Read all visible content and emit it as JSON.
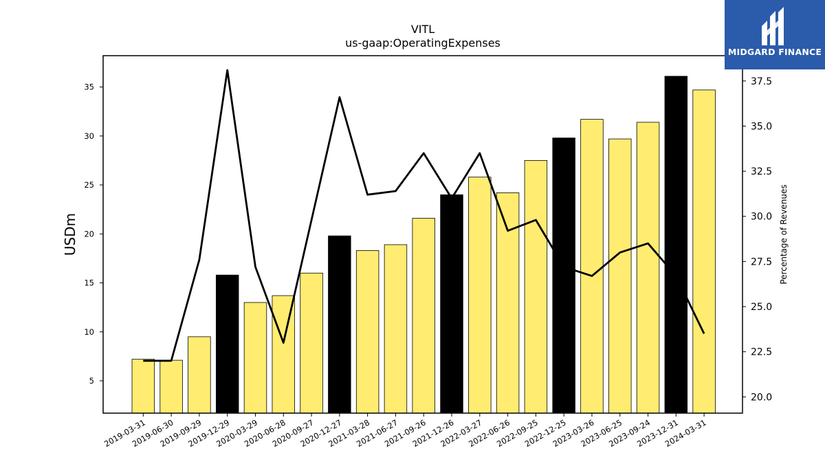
{
  "chart_data": {
    "type": "bar",
    "title": "VITL",
    "subtitle": "us-gaap:OperatingExpenses",
    "ylabel": "USDm",
    "y2label": "Percentage of Revenues",
    "categories": [
      "2019-03-31",
      "2019-06-30",
      "2019-09-29",
      "2019-12-29",
      "2020-03-29",
      "2020-06-28",
      "2020-09-27",
      "2020-12-27",
      "2021-03-28",
      "2021-06-27",
      "2021-09-26",
      "2021-12-26",
      "2022-03-27",
      "2022-06-26",
      "2022-09-25",
      "2022-12-25",
      "2023-03-26",
      "2023-06-25",
      "2023-09-24",
      "2023-12-31",
      "2024-03-31"
    ],
    "bar_values": [
      7.2,
      7.1,
      9.5,
      15.8,
      13.0,
      13.7,
      16.0,
      19.8,
      18.3,
      18.9,
      21.6,
      24.0,
      25.8,
      24.2,
      27.5,
      29.8,
      31.7,
      29.7,
      31.4,
      36.1,
      34.7
    ],
    "bar_highlight": [
      false,
      false,
      false,
      true,
      false,
      false,
      false,
      true,
      false,
      false,
      false,
      true,
      false,
      false,
      false,
      true,
      false,
      false,
      false,
      true,
      false
    ],
    "line_values": [
      22.0,
      22.0,
      27.6,
      38.1,
      27.2,
      23.0,
      29.8,
      36.6,
      31.2,
      31.4,
      33.5,
      31.0,
      33.5,
      29.2,
      29.8,
      27.2,
      26.7,
      28.0,
      28.5,
      26.7,
      23.5
    ],
    "ylim": [
      1.7,
      38.2
    ],
    "y2lim": [
      19.1,
      38.9
    ],
    "yticks": [
      5,
      10,
      15,
      20,
      25,
      30,
      35
    ],
    "y2ticks": [
      20.0,
      22.5,
      25.0,
      27.5,
      30.0,
      32.5,
      35.0,
      37.5
    ],
    "grid": false,
    "colors": {
      "bar": "#ffec70",
      "bar_highlight": "#000000",
      "line": "#000000"
    }
  },
  "logo": {
    "text": "MIDGARD FINANCE",
    "background": "#2b5bab"
  }
}
